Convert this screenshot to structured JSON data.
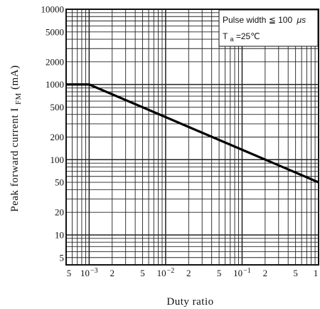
{
  "chart_data": {
    "type": "line",
    "title": "",
    "xlabel": "Duty ratio",
    "ylabel_main": "Peak forward current I",
    "ylabel_sub": "FM",
    "ylabel_unit": " (mA)",
    "x_scale": "log",
    "y_scale": "log",
    "xlim": [
      0.0005,
      1
    ],
    "ylim": [
      4,
      10000
    ],
    "grid": true,
    "y_ticks": [
      {
        "value": 10000,
        "label": "10000"
      },
      {
        "value": 5000,
        "label": "5000"
      },
      {
        "value": 2000,
        "label": "2000"
      },
      {
        "value": 1000,
        "label": "1000"
      },
      {
        "value": 500,
        "label": "500"
      },
      {
        "value": 200,
        "label": "200"
      },
      {
        "value": 100,
        "label": "100"
      },
      {
        "value": 50,
        "label": "50"
      },
      {
        "value": 20,
        "label": "20"
      },
      {
        "value": 10,
        "label": "10"
      },
      {
        "value": 5,
        "label": "5"
      }
    ],
    "x_ticks": [
      {
        "value": 0.0005,
        "label": "5"
      },
      {
        "value": 0.001,
        "label": "10",
        "sup": "−3"
      },
      {
        "value": 0.002,
        "label": "2"
      },
      {
        "value": 0.005,
        "label": "5"
      },
      {
        "value": 0.01,
        "label": "10",
        "sup": "−2"
      },
      {
        "value": 0.02,
        "label": "2"
      },
      {
        "value": 0.05,
        "label": "5"
      },
      {
        "value": 0.1,
        "label": "10",
        "sup": "−1"
      },
      {
        "value": 0.2,
        "label": "2"
      },
      {
        "value": 0.5,
        "label": "5"
      },
      {
        "value": 1,
        "label": "1"
      }
    ],
    "series": [
      {
        "points": [
          [
            0.0005,
            1000
          ],
          [
            0.001,
            1000
          ],
          [
            1,
            50
          ]
        ]
      }
    ],
    "annotation": {
      "line1_prefix": "Pulse width",
      "line1_symbol": "≦",
      "line1_value": "100",
      "line1_unit": "μs",
      "line2_main": "T",
      "line2_sub": "a",
      "line2_value": "=25℃"
    }
  }
}
